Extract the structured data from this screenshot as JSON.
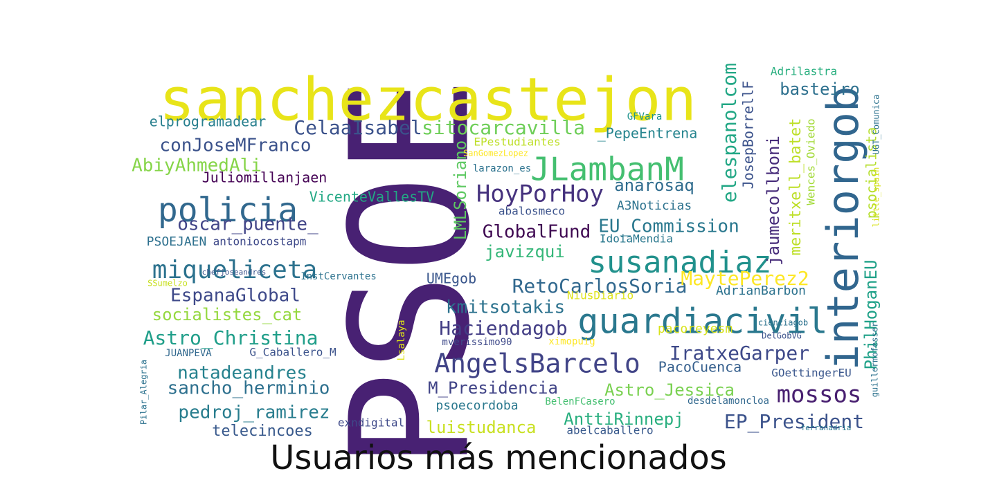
{
  "chart_data": {
    "type": "wordcloud",
    "title": "Usuarios más mencionados",
    "colormap": "viridis",
    "words": [
      {
        "text": "PSOE",
        "weight": 1.0,
        "color": "#482173",
        "vertical": true
      },
      {
        "text": "sanchezcastejon",
        "weight": 0.7,
        "color": "#e8e419",
        "vertical": false
      },
      {
        "text": "interiorgob",
        "weight": 0.45,
        "color": "#31668e",
        "vertical": true
      },
      {
        "text": "guardiacivil",
        "weight": 0.42,
        "color": "#2a788e",
        "vertical": false
      },
      {
        "text": "policia",
        "weight": 0.4,
        "color": "#31688e",
        "vertical": false
      },
      {
        "text": "JLambanM",
        "weight": 0.38,
        "color": "#44bf70",
        "vertical": false
      },
      {
        "text": "susanadiaz",
        "weight": 0.36,
        "color": "#21918c",
        "vertical": false
      },
      {
        "text": "AngelsBarcelo",
        "weight": 0.32,
        "color": "#414487",
        "vertical": false
      },
      {
        "text": "miqueliceta",
        "weight": 0.3,
        "color": "#2c728e",
        "vertical": false
      },
      {
        "text": "HoyPorHoy",
        "weight": 0.29,
        "color": "#46327e",
        "vertical": false
      },
      {
        "text": "mossos",
        "weight": 0.28,
        "color": "#481f70",
        "vertical": false
      },
      {
        "text": "Astro_Christina",
        "weight": 0.25,
        "color": "#1f9e89",
        "vertical": false
      },
      {
        "text": "sitocarcavilla",
        "weight": 0.25,
        "color": "#6ece58",
        "vertical": false
      },
      {
        "text": "CelaaIsabel",
        "weight": 0.25,
        "color": "#3b528b",
        "vertical": false
      },
      {
        "text": "elespanolcom",
        "weight": 0.25,
        "color": "#22a785",
        "vertical": true
      },
      {
        "text": "RetoCarlosSoria",
        "weight": 0.24,
        "color": "#31688e",
        "vertical": false
      },
      {
        "text": "MaytePerez2",
        "weight": 0.24,
        "color": "#fde725",
        "vertical": false
      },
      {
        "text": "Haciendagob",
        "weight": 0.24,
        "color": "#433e85",
        "vertical": false
      },
      {
        "text": "IratxeGarper",
        "weight": 0.24,
        "color": "#3e4989",
        "vertical": false
      },
      {
        "text": "EP_President",
        "weight": 0.24,
        "color": "#3b528b",
        "vertical": false
      },
      {
        "text": "conJoseMFranco",
        "weight": 0.23,
        "color": "#3b528b",
        "vertical": false
      },
      {
        "text": "AbiyAhmedAli",
        "weight": 0.23,
        "color": "#86d549",
        "vertical": false
      },
      {
        "text": "oscar_puente_",
        "weight": 0.23,
        "color": "#414487",
        "vertical": false
      },
      {
        "text": "EspanaGlobal",
        "weight": 0.23,
        "color": "#3e4989",
        "vertical": false
      },
      {
        "text": "natadeandres",
        "weight": 0.23,
        "color": "#26828e",
        "vertical": false
      },
      {
        "text": "sancho_herminio",
        "weight": 0.23,
        "color": "#2d708e",
        "vertical": false
      },
      {
        "text": "pedroj_ramirez",
        "weight": 0.23,
        "color": "#287d8e",
        "vertical": false
      },
      {
        "text": "GlobalFund",
        "weight": 0.23,
        "color": "#3e0751",
        "vertical": false
      },
      {
        "text": "EU_Commission",
        "weight": 0.23,
        "color": "#2a788e",
        "vertical": false
      },
      {
        "text": "kmitsotakis",
        "weight": 0.23,
        "color": "#2c728e",
        "vertical": false
      },
      {
        "text": "M_Presidencia",
        "weight": 0.22,
        "color": "#414487",
        "vertical": false
      },
      {
        "text": "Astro_Jessica",
        "weight": 0.22,
        "color": "#7ad151",
        "vertical": false
      },
      {
        "text": "AnttiRinnepj",
        "weight": 0.22,
        "color": "#29af7f",
        "vertical": false
      },
      {
        "text": "luistudanca",
        "weight": 0.22,
        "color": "#c8e020",
        "vertical": false
      },
      {
        "text": "PhilHoganEU",
        "weight": 0.22,
        "color": "#1fa188",
        "vertical": true
      },
      {
        "text": "jaumecollboni",
        "weight": 0.22,
        "color": "#472c7a",
        "vertical": true
      },
      {
        "text": "meritxell_batet",
        "weight": 0.22,
        "color": "#bddf26",
        "vertical": true
      },
      {
        "text": "anarosaq",
        "weight": 0.2,
        "color": "#2f6c8e",
        "vertical": false
      },
      {
        "text": "javizqui",
        "weight": 0.2,
        "color": "#35b779",
        "vertical": false
      },
      {
        "text": "LMLSoriano",
        "weight": 0.2,
        "color": "#5ec962",
        "vertical": true
      },
      {
        "text": "basteiro",
        "weight": 0.2,
        "color": "#2d708e",
        "vertical": false
      },
      {
        "text": "socialistes_cat",
        "weight": 0.2,
        "color": "#95d840",
        "vertical": false
      },
      {
        "text": "elprogramadear",
        "weight": 0.19,
        "color": "#277f8e",
        "vertical": false
      },
      {
        "text": "_PepeEntrena",
        "weight": 0.19,
        "color": "#25848e",
        "vertical": false
      },
      {
        "text": "JosepBorrellF",
        "weight": 0.19,
        "color": "#3b528b",
        "vertical": true
      },
      {
        "text": "psocialista",
        "weight": 0.19,
        "color": "#b5de2b",
        "vertical": true
      },
      {
        "text": "telecincoes",
        "weight": 0.19,
        "color": "#38598c",
        "vertical": false
      },
      {
        "text": "PacoCuenca",
        "weight": 0.18,
        "color": "#355f8d",
        "vertical": false
      },
      {
        "text": "Juliomillanjaen",
        "weight": 0.17,
        "color": "#440154",
        "vertical": false
      },
      {
        "text": "VicenteVallesTV",
        "weight": 0.17,
        "color": "#22a884",
        "vertical": false
      },
      {
        "text": "PSOEJAEN",
        "weight": 0.17,
        "color": "#2d708e",
        "vertical": false
      },
      {
        "text": "UMEgob",
        "weight": 0.17,
        "color": "#39568c",
        "vertical": false
      },
      {
        "text": "A3Noticias",
        "weight": 0.16,
        "color": "#2c728e",
        "vertical": false
      },
      {
        "text": "Wences_Oviedo",
        "weight": 0.16,
        "color": "#a2da37",
        "vertical": true
      },
      {
        "text": "pacoreyesm",
        "weight": 0.16,
        "color": "#d8e219",
        "vertical": false
      },
      {
        "text": "AdrianBarbon",
        "weight": 0.16,
        "color": "#2c728e",
        "vertical": false
      },
      {
        "text": "psoecordoba",
        "weight": 0.16,
        "color": "#2a788e",
        "vertical": false
      },
      {
        "text": "EPestudiantes",
        "weight": 0.16,
        "color": "#bddf26",
        "vertical": false
      },
      {
        "text": "Adrilastra",
        "weight": 0.16,
        "color": "#29af7f",
        "vertical": false
      },
      {
        "text": "GOettingerEU",
        "weight": 0.15,
        "color": "#39568c",
        "vertical": false
      },
      {
        "text": "antoniocostapm",
        "weight": 0.15,
        "color": "#3e4989",
        "vertical": false
      },
      {
        "text": "abalosmeco",
        "weight": 0.14,
        "color": "#3b528b",
        "vertical": false
      },
      {
        "text": "IdoiaMendia",
        "weight": 0.14,
        "color": "#2a788e",
        "vertical": false
      },
      {
        "text": "G_Caballero_M",
        "weight": 0.14,
        "color": "#3b528b",
        "vertical": false
      },
      {
        "text": "NiusDiario",
        "weight": 0.14,
        "color": "#dde318",
        "vertical": false
      },
      {
        "text": "exndigital",
        "weight": 0.14,
        "color": "#3e4989",
        "vertical": false
      },
      {
        "text": "abelcaballero",
        "weight": 0.14,
        "color": "#38598c",
        "vertical": false
      },
      {
        "text": "mverissimo90",
        "weight": 0.14,
        "color": "#3e4989",
        "vertical": false
      },
      {
        "text": "BelenFCasero",
        "weight": 0.13,
        "color": "#44bf70",
        "vertical": false
      },
      {
        "text": "GFVara",
        "weight": 0.13,
        "color": "#20938c",
        "vertical": false
      },
      {
        "text": "desdelamoncloa",
        "weight": 0.12,
        "color": "#31688e",
        "vertical": false
      },
      {
        "text": "JUANPEVA",
        "weight": 0.12,
        "color": "#31688e",
        "vertical": false
      },
      {
        "text": "ximopuig",
        "weight": 0.12,
        "color": "#fde725",
        "vertical": false
      },
      {
        "text": "larazon_es",
        "weight": 0.12,
        "color": "#2c728e",
        "vertical": false
      },
      {
        "text": "InstCervantes",
        "weight": 0.12,
        "color": "#2c728e",
        "vertical": false
      },
      {
        "text": "Lsalaya",
        "weight": 0.12,
        "color": "#dde318",
        "vertical": true
      },
      {
        "text": "SanGomezLopez",
        "weight": 0.11,
        "color": "#fde725",
        "vertical": false
      },
      {
        "text": "UGT_Comunica",
        "weight": 0.11,
        "color": "#2c728e",
        "vertical": true
      },
      {
        "text": "little_spain",
        "weight": 0.11,
        "color": "#d8e219",
        "vertical": true
      },
      {
        "text": "DelGobVG",
        "weight": 0.11,
        "color": "#3b528b",
        "vertical": false
      },
      {
        "text": "cienciagob",
        "weight": 0.1,
        "color": "#2c728e",
        "vertical": false
      },
      {
        "text": "guillermofesser",
        "weight": 0.1,
        "color": "#2c728e",
        "vertical": true
      },
      {
        "text": "Pilar_Alegria",
        "weight": 0.1,
        "color": "#2c728e",
        "vertical": true
      },
      {
        "text": "SSumelzo",
        "weight": 0.1,
        "color": "#c8e020",
        "vertical": false
      },
      {
        "text": "chefjoseandres",
        "weight": 0.09,
        "color": "#3b528b",
        "vertical": false
      },
      {
        "text": "ferranadria",
        "weight": 0.09,
        "color": "#2a788e",
        "vertical": false
      }
    ]
  }
}
